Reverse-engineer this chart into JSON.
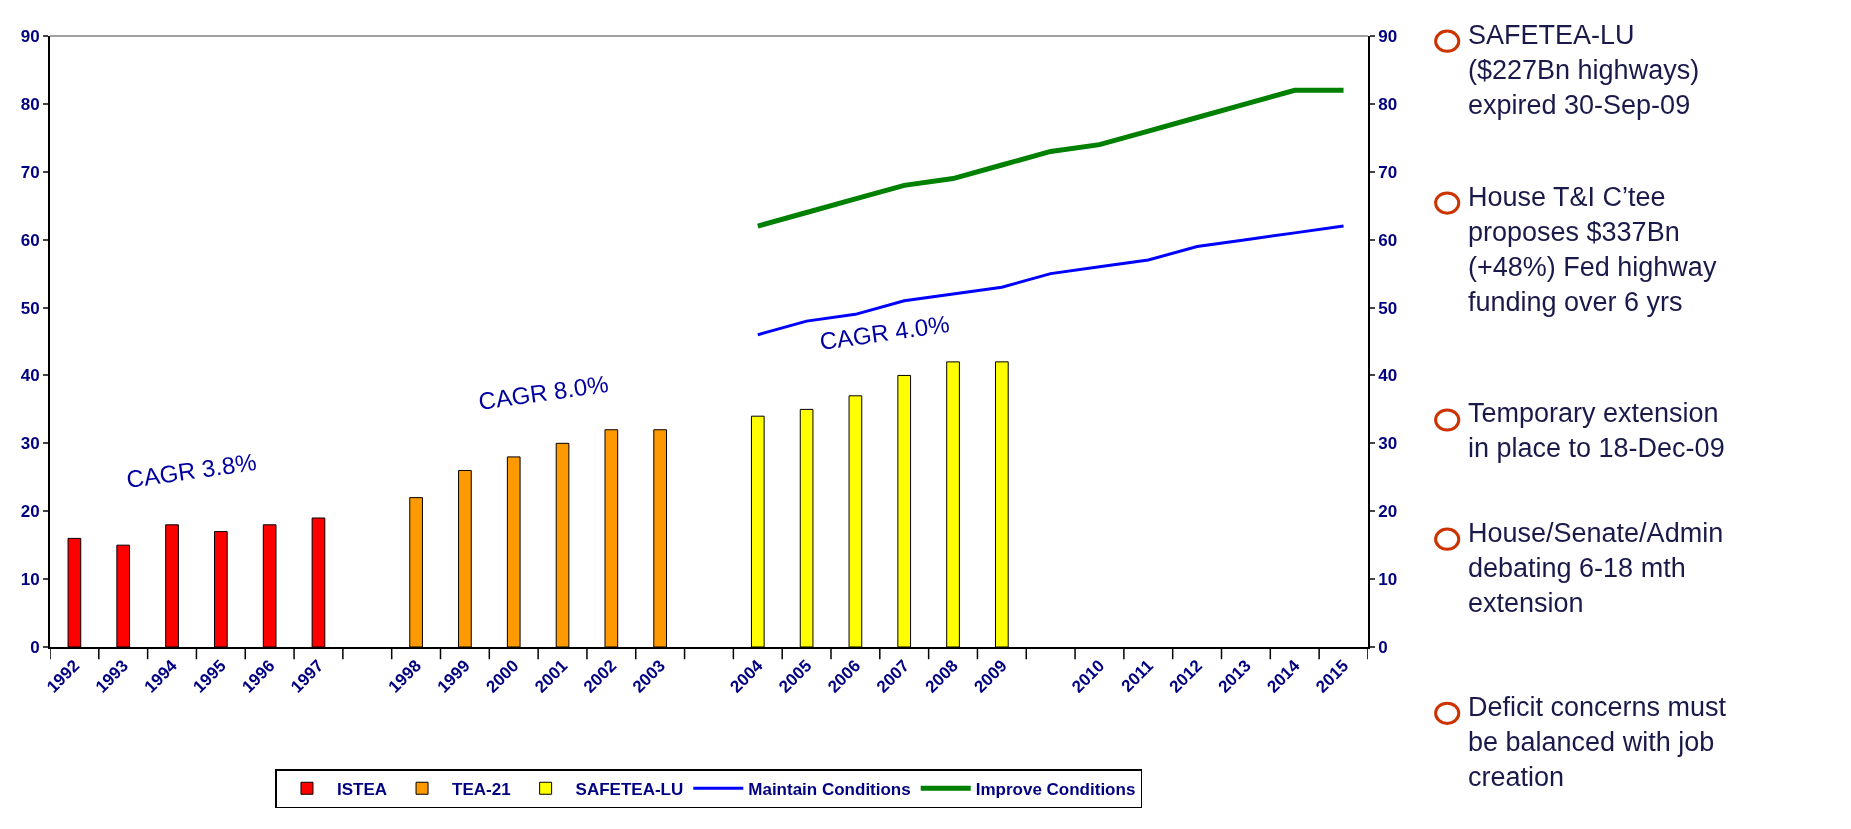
{
  "chart_data": {
    "type": "bar",
    "categories": [
      "1992",
      "1993",
      "1994",
      "1995",
      "1996",
      "1997",
      null,
      "1998",
      "1999",
      "2000",
      "2001",
      "2002",
      "2003",
      null,
      "2004",
      "2005",
      "2006",
      "2007",
      "2008",
      "2009",
      null,
      "2010",
      "2011",
      "2012",
      "2013",
      "2014",
      "2015"
    ],
    "series": [
      {
        "name": "ISTEA",
        "color": "#ff0000",
        "values": [
          16,
          15,
          18,
          17,
          18,
          19,
          null,
          null,
          null,
          null,
          null,
          null,
          null,
          null,
          null,
          null,
          null,
          null,
          null,
          null,
          null,
          null,
          null,
          null,
          null,
          null,
          null
        ]
      },
      {
        "name": "TEA-21",
        "color": "#ff9900",
        "values": [
          null,
          null,
          null,
          null,
          null,
          null,
          null,
          22,
          26,
          28,
          30,
          32,
          32,
          null,
          null,
          null,
          null,
          null,
          null,
          null,
          null,
          null,
          null,
          null,
          null,
          null,
          null
        ]
      },
      {
        "name": "SAFETEA-LU",
        "color": "#ffff00",
        "values": [
          null,
          null,
          null,
          null,
          null,
          null,
          null,
          null,
          null,
          null,
          null,
          null,
          null,
          null,
          34,
          35,
          37,
          40,
          42,
          42,
          null,
          null,
          null,
          null,
          null,
          null,
          null
        ]
      },
      {
        "name": "Maintain Conditions",
        "color": "#0000ff",
        "type": "line",
        "axis": "y2",
        "values": [
          null,
          null,
          null,
          null,
          null,
          null,
          null,
          null,
          null,
          null,
          null,
          null,
          null,
          null,
          46,
          48,
          49,
          51,
          52,
          53,
          55,
          56,
          57,
          59,
          60,
          61,
          62
        ]
      },
      {
        "name": "Improve Conditions",
        "color": "#008000",
        "type": "line",
        "axis": "y2",
        "values": [
          null,
          null,
          null,
          null,
          null,
          null,
          null,
          null,
          null,
          null,
          null,
          null,
          null,
          null,
          62,
          64,
          66,
          68,
          69,
          71,
          73,
          74,
          76,
          78,
          80,
          82,
          82
        ]
      }
    ],
    "ylim": [
      0,
      90
    ],
    "yticks": [
      0,
      10,
      20,
      30,
      40,
      50,
      60,
      70,
      80,
      90
    ],
    "y2lim": [
      0,
      90
    ],
    "y2ticks": [
      0,
      10,
      20,
      30,
      40,
      50,
      60,
      70,
      80,
      90
    ],
    "legend": "bottom",
    "annotations": [
      "CAGR 3.8%",
      "CAGR 8.0%",
      "CAGR 4.0%",
      "SAFETEA-LU\n($227Bn highways)\nexpired 30-Sep-09",
      "House T&I C’tee\nproposes $337Bn\n(+48%) Fed highway\nfunding over 6 yrs",
      "Temporary extension\nin place to 18-Dec-09",
      "House/Senate/Admin\ndebating 6-18 mth\nextension",
      "Deficit concerns must\nbe balanced with job\ncreation"
    ]
  }
}
